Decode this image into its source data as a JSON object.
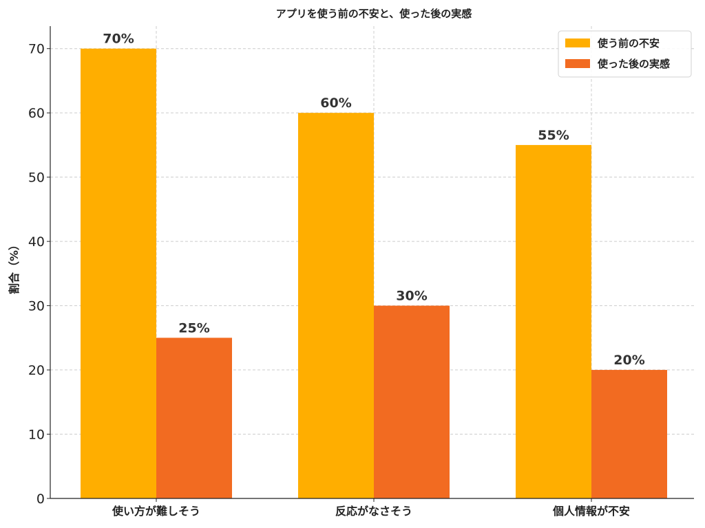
{
  "chart_data": {
    "type": "bar",
    "title": "アプリを使う前の不安と、使った後の実感",
    "xlabel": "",
    "ylabel": "割合（%）",
    "categories": [
      "使い方が難しそう",
      "反応がなさそう",
      "個人情報が不安"
    ],
    "series": [
      {
        "name": "使う前の不安",
        "values": [
          70,
          60,
          55
        ],
        "color": "#FFAE00"
      },
      {
        "name": "使った後の実感",
        "values": [
          25,
          30,
          20
        ],
        "color": "#F26B21"
      }
    ],
    "value_labels": [
      [
        "70%",
        "60%",
        "55%"
      ],
      [
        "25%",
        "30%",
        "20%"
      ]
    ],
    "ylim": [
      0,
      73.5
    ],
    "yticks": [
      0,
      10,
      20,
      30,
      40,
      50,
      60,
      70
    ],
    "grid": true,
    "legend_position": "top-right"
  }
}
